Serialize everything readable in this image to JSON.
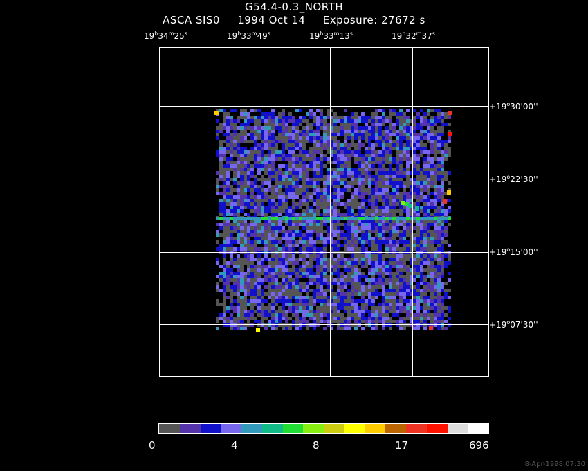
{
  "header": {
    "object": "G54.4-0.3_NORTH",
    "instrument": "ASCA SIS0",
    "date": "1994 Oct 14",
    "exposure": "Exposure: 27672 s"
  },
  "ra_ticks": [
    {
      "h": "19",
      "m": "34",
      "s": "25"
    },
    {
      "h": "19",
      "m": "33",
      "s": "49"
    },
    {
      "h": "19",
      "m": "33",
      "s": "13"
    },
    {
      "h": "19",
      "m": "32",
      "s": "37"
    }
  ],
  "dec_ticks": [
    {
      "d": "+19",
      "m": "30",
      "s": "00"
    },
    {
      "d": "+19",
      "m": "22",
      "s": "30"
    },
    {
      "d": "+19",
      "m": "15",
      "s": "00"
    },
    {
      "d": "+19",
      "m": "07",
      "s": "30"
    }
  ],
  "colorbar": {
    "colors": [
      "#555555",
      "#5533aa",
      "#1111cc",
      "#7766ee",
      "#3399bb",
      "#11bb88",
      "#22dd33",
      "#88ee11",
      "#cccc11",
      "#ffff00",
      "#ffcc00",
      "#bb6600",
      "#ee3322",
      "#ff1100",
      "#dddddd",
      "#ffffff"
    ],
    "labels": [
      "0",
      "4",
      "8",
      "17",
      "696"
    ]
  },
  "timestamp": "8-Apr-1998 07:30"
}
